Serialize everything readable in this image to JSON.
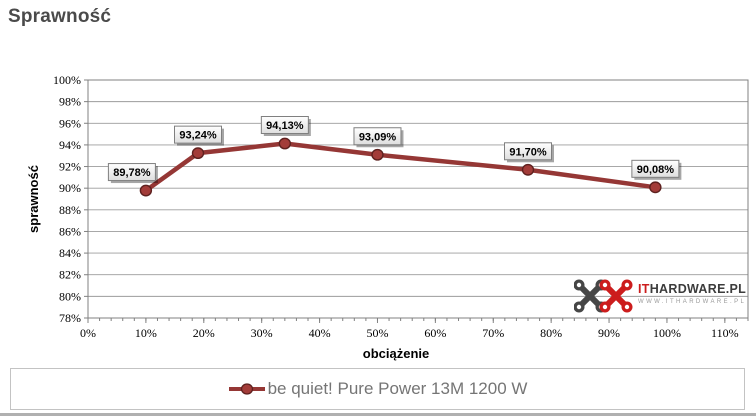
{
  "page": {
    "title": "Sprawność"
  },
  "legend": {
    "label": "be quiet! Pure Power 13M 1200 W"
  },
  "watermark": {
    "brand_prefix": "IT",
    "brand_rest": "HARDWARE.PL",
    "url": "WWW.ITHARDWARE.PL",
    "red": "#cc1d1d",
    "dark": "#464646"
  },
  "colors": {
    "series_line": "#953735",
    "marker_fill": "#a33c39",
    "marker_stroke": "#5e211f",
    "gridline": "#9c9c9c",
    "plot_border": "#808080",
    "label_box_border": "#7f7f7f",
    "title_text": "#4a4a4a",
    "legend_text": "#757575"
  },
  "chart_data": {
    "type": "line",
    "title": "Sprawność",
    "xlabel": "obciążenie",
    "ylabel": "sprawność",
    "xlim": [
      0,
      114
    ],
    "ylim": [
      78,
      100
    ],
    "x_major_ticks": [
      0,
      10,
      20,
      30,
      40,
      50,
      60,
      70,
      80,
      90,
      100,
      110
    ],
    "x_minor_step": 2,
    "y_ticks": [
      100,
      98,
      96,
      94,
      92,
      90,
      88,
      86,
      84,
      82,
      80,
      78
    ],
    "tick_suffix": "%",
    "grid": true,
    "legend_position": "bottom",
    "series": [
      {
        "name": "be quiet! Pure Power 13M 1200 W",
        "color": "#953735",
        "x": [
          10,
          19,
          34,
          50,
          76,
          98
        ],
        "values": [
          89.78,
          93.24,
          94.13,
          93.09,
          91.7,
          90.08
        ],
        "point_labels": [
          "89,78%",
          "93,24%",
          "94,13%",
          "93,09%",
          "91,70%",
          "90,08%"
        ]
      }
    ]
  }
}
